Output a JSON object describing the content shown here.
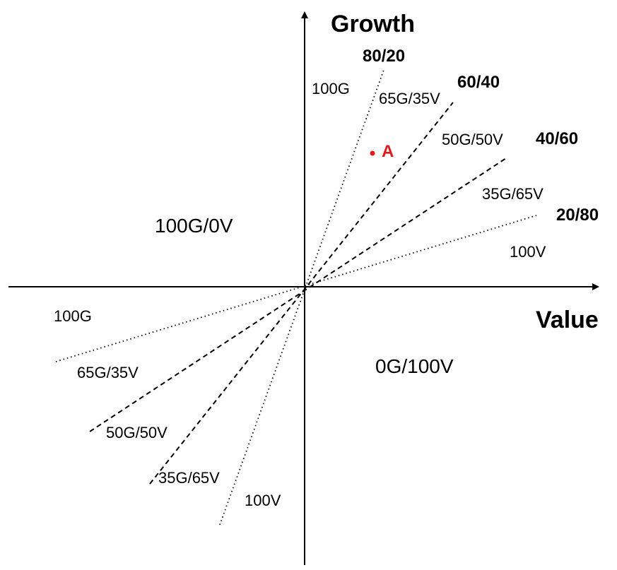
{
  "axes": {
    "y_title": "Growth",
    "x_title": "Value"
  },
  "regions": {
    "upper_left": "100G/0V",
    "lower_right": "0G/100V"
  },
  "boundary_labels": {
    "r80_20": "80/20",
    "r60_40": "60/40",
    "r40_60": "40/60",
    "r20_80": "20/80"
  },
  "upper_zone_labels": {
    "z1": "100G",
    "z2": "65G/35V",
    "z3": "50G/50V",
    "z4": "35G/65V",
    "z5": "100V"
  },
  "lower_zone_labels": {
    "z1": "100G",
    "z2": "65G/35V",
    "z3": "50G/50V",
    "z4": "35G/65V",
    "z5": "100V"
  },
  "point": {
    "label": "A",
    "color": "#e31a1c"
  },
  "colors": {
    "lines": "#000000",
    "text": "#000000"
  }
}
